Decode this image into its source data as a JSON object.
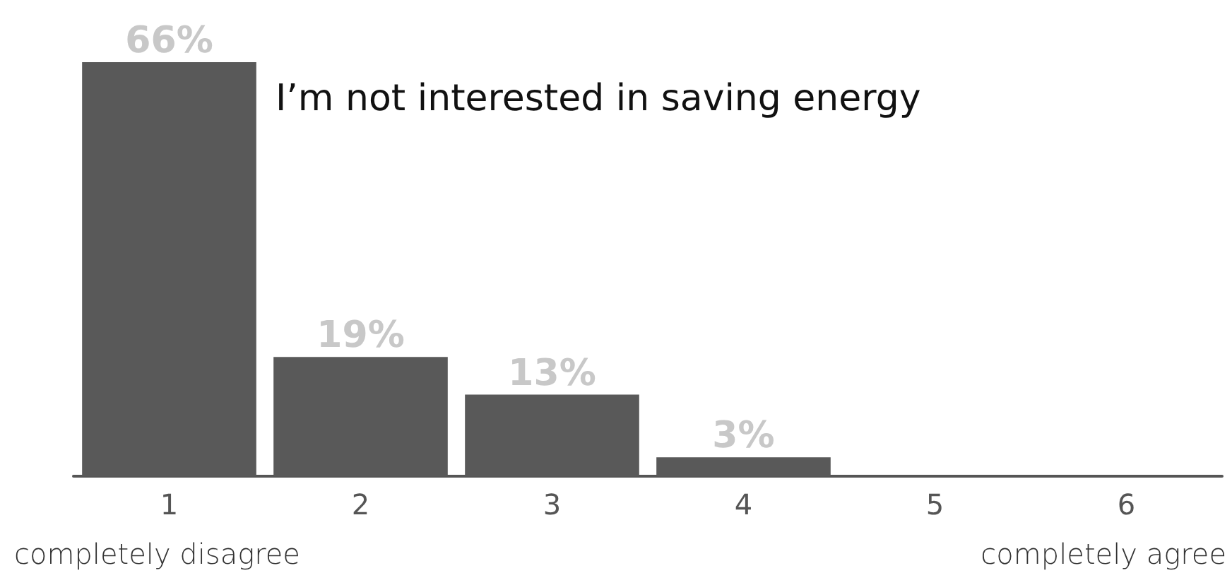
{
  "chart_data": {
    "type": "bar",
    "title": "I’m not interested in saving energy",
    "categories": [
      "1",
      "2",
      "3",
      "4",
      "5",
      "6"
    ],
    "values": [
      66,
      19,
      13,
      3,
      0,
      0
    ],
    "value_labels": [
      "66%",
      "19%",
      "13%",
      "3%",
      null,
      null
    ],
    "color": "#595959",
    "annotations": [
      "completely disagree",
      "completely agree"
    ],
    "grid": false
  }
}
